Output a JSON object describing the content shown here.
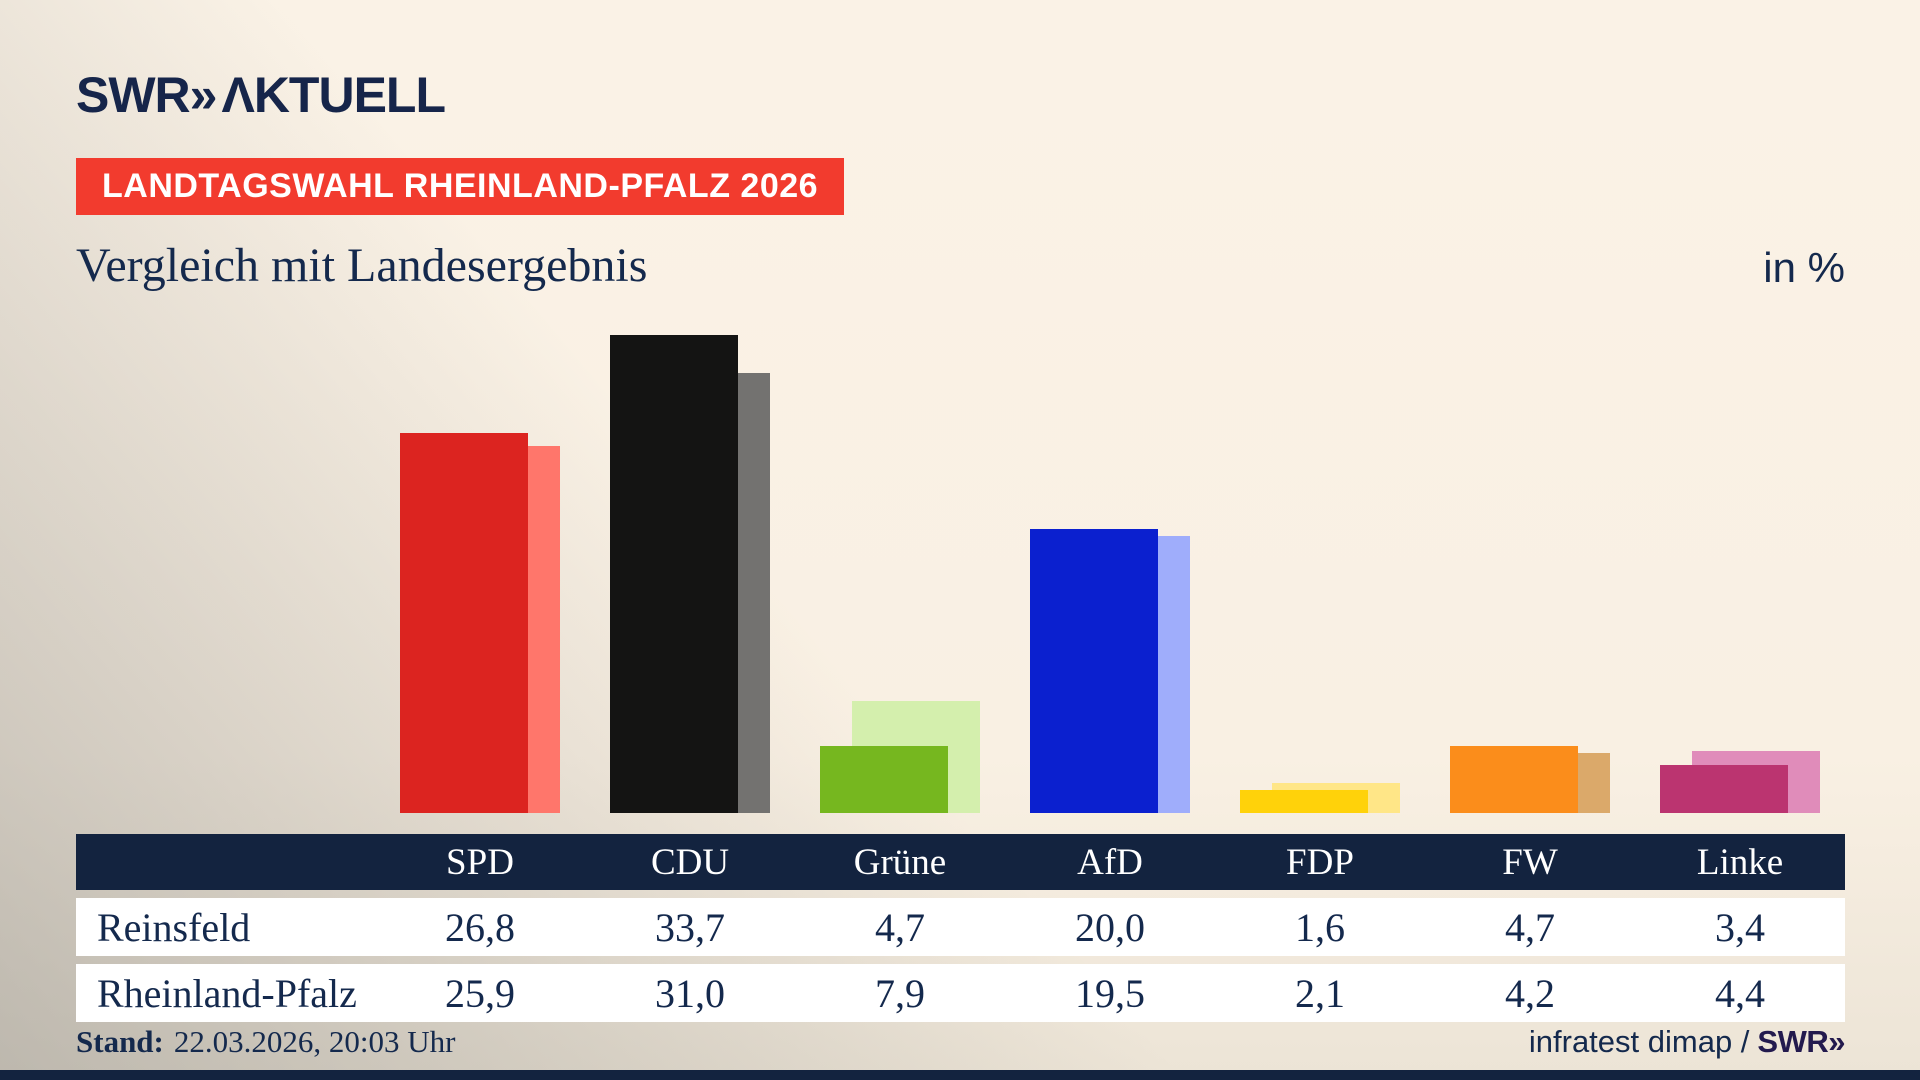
{
  "header": {
    "logo_swr": "SWR",
    "logo_chevrons": "»",
    "logo_aktuell": "ΛKTUELL",
    "badge": "LANDTAGSWAHL RHEINLAND-PFALZ 2026",
    "title": "Vergleich mit Landesergebnis",
    "unit_label": "in %"
  },
  "footer": {
    "stand_label": "Stand:",
    "stand_value": "22.03.2026, 20:03 Uhr",
    "source_text": "infratest dimap /",
    "source_logo": "SWR»"
  },
  "chart_data": {
    "type": "bar",
    "title": "Vergleich mit Landesergebnis",
    "unit": "in %",
    "categories": [
      "SPD",
      "CDU",
      "Grüne",
      "AfD",
      "FDP",
      "FW",
      "Linke"
    ],
    "series": [
      {
        "name": "Reinsfeld",
        "values": [
          26.8,
          33.7,
          4.7,
          20.0,
          1.6,
          4.7,
          3.4
        ]
      },
      {
        "name": "Rheinland-Pfalz",
        "values": [
          25.9,
          31.0,
          7.9,
          19.5,
          2.1,
          4.2,
          4.4
        ]
      }
    ],
    "colors": {
      "reinsfeld": [
        "#dc2420",
        "#141413",
        "#76b71f",
        "#0b20cf",
        "#ffd20a",
        "#fb8d1b",
        "#bb3470"
      ],
      "rheinland_pfalz": [
        "#ff766b",
        "#737270",
        "#d4efad",
        "#9fadfb",
        "#ffe687",
        "#dba96a",
        "#e08cba"
      ]
    },
    "value_format": "decimal-comma-1",
    "ylim": [
      0,
      35
    ],
    "grid": false,
    "legend": "table-below"
  },
  "style_colors": {
    "background_cream": "#faf2e6",
    "background_gray_corner": "#d4d1cb",
    "navy": "#13233f",
    "badge_red": "#f23b2e",
    "swr_logo_footer_purple": "#231a4e"
  }
}
